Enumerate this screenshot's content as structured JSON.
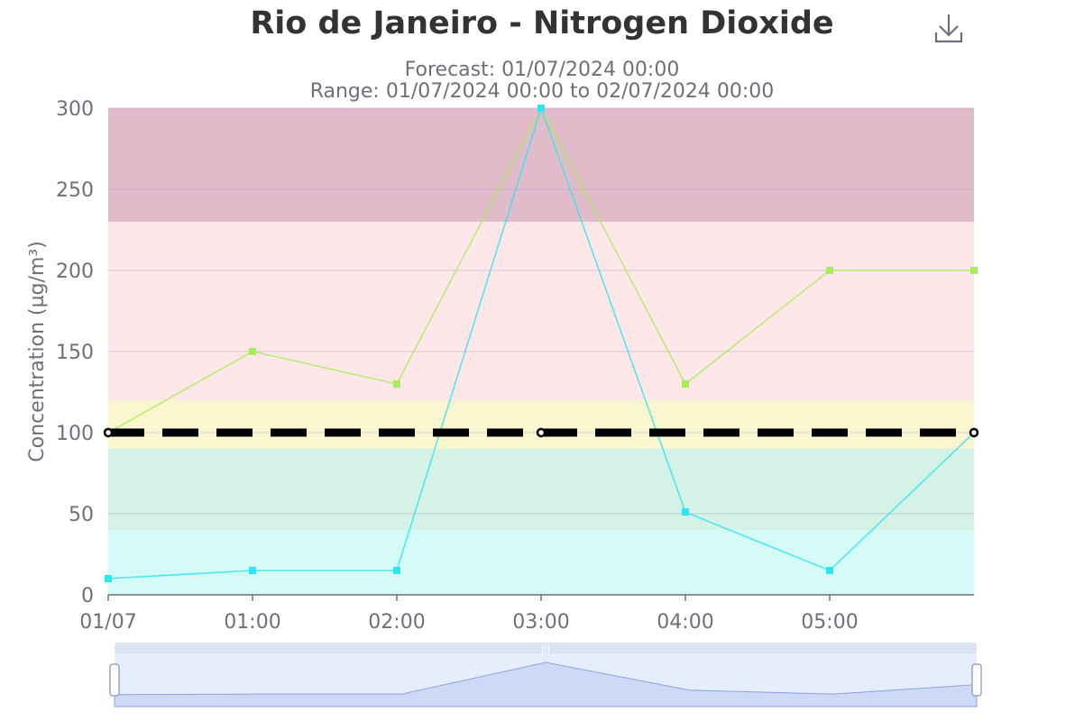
{
  "title": "Rio de Janeiro - Nitrogen Dioxide",
  "subtitle_forecast": "Forecast: 01/07/2024 00:00",
  "subtitle_range": "Range: 01/07/2024 00:00 to 02/07/2024 00:00",
  "toolbar": {
    "download_icon": "download-icon"
  },
  "chart_data": {
    "type": "line",
    "ylabel": "Concentration (µg/m³)",
    "ylim": [
      0,
      300
    ],
    "yticks": [
      0,
      50,
      100,
      150,
      200,
      250,
      300
    ],
    "x": [
      "01/07",
      "01:00",
      "02:00",
      "03:00",
      "04:00",
      "05:00",
      "06:00"
    ],
    "xtick_labels": [
      "01/07",
      "01:00",
      "02:00",
      "03:00",
      "04:00",
      "05:00"
    ],
    "grid": true,
    "bands": [
      {
        "from": 0,
        "to": 40,
        "color": "#d4fbf6"
      },
      {
        "from": 40,
        "to": 90,
        "color": "#d4f2e6"
      },
      {
        "from": 90,
        "to": 120,
        "color": "#faf6d0"
      },
      {
        "from": 120,
        "to": 230,
        "color": "#fde7e8"
      },
      {
        "from": 230,
        "to": 300,
        "color": "#e2bbca"
      }
    ],
    "series": [
      {
        "values": [
          100,
          150,
          130,
          300,
          130,
          200,
          200
        ],
        "color": "#a8ee5a"
      },
      {
        "values": [
          10,
          15,
          15,
          300,
          51,
          15,
          100
        ],
        "color": "#2de4f0"
      },
      {
        "values": [
          100,
          100,
          100,
          100,
          100,
          100,
          100
        ],
        "color": "#000000",
        "dashed": true,
        "marked_points": [
          0,
          3,
          6
        ]
      }
    ],
    "navigator_values": [
      10,
      15,
      15,
      300,
      51,
      15,
      100
    ]
  }
}
